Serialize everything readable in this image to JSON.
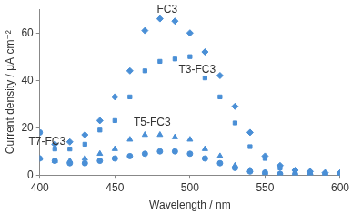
{
  "chart_data": {
    "type": "scatter",
    "x_label": "Wavelength / nm",
    "y_label": "Current density / μA cm⁻²",
    "x": [
      400,
      410,
      420,
      430,
      440,
      450,
      460,
      470,
      480,
      490,
      500,
      510,
      520,
      530,
      540,
      550,
      560,
      570,
      580,
      590,
      600
    ],
    "series": [
      {
        "name": "FC3",
        "color": "#4a8fd6",
        "marker": "diamond",
        "values": [
          7,
          13,
          14,
          17,
          23,
          33,
          44,
          61,
          66,
          65,
          60,
          52,
          42,
          29,
          18,
          8,
          4,
          2,
          1.5,
          1,
          1
        ]
      },
      {
        "name": "T3-FC3",
        "color": "#4a8fd6",
        "marker": "square",
        "values": [
          7,
          11,
          11,
          13,
          19,
          23,
          33,
          44,
          48,
          49,
          50,
          41,
          33,
          22,
          12,
          7,
          3,
          1.5,
          1,
          0.5,
          0.5
        ]
      },
      {
        "name": "T5-FC3",
        "color": "#4a8fd6",
        "marker": "triangle",
        "values": [
          7,
          6,
          6,
          7,
          9,
          11,
          15,
          17,
          17,
          16,
          15,
          11,
          8,
          4,
          2,
          1,
          0.5,
          0.4,
          0.3,
          0.3,
          0.3
        ]
      },
      {
        "name": "T7-FC3",
        "color": "#4a8fd6",
        "marker": "circle",
        "values": [
          18,
          6,
          5,
          5,
          6,
          7,
          8,
          9,
          10,
          10,
          9,
          7,
          5,
          3,
          1.5,
          1,
          0.5,
          0.3,
          0.2,
          0.2,
          0.2
        ]
      }
    ],
    "xlim": [
      400,
      600
    ],
    "xticks": [
      400,
      450,
      500,
      550,
      600
    ],
    "ylim": [
      0,
      70
    ],
    "yticks": [
      0,
      20,
      40,
      60
    ],
    "grid": false
  }
}
